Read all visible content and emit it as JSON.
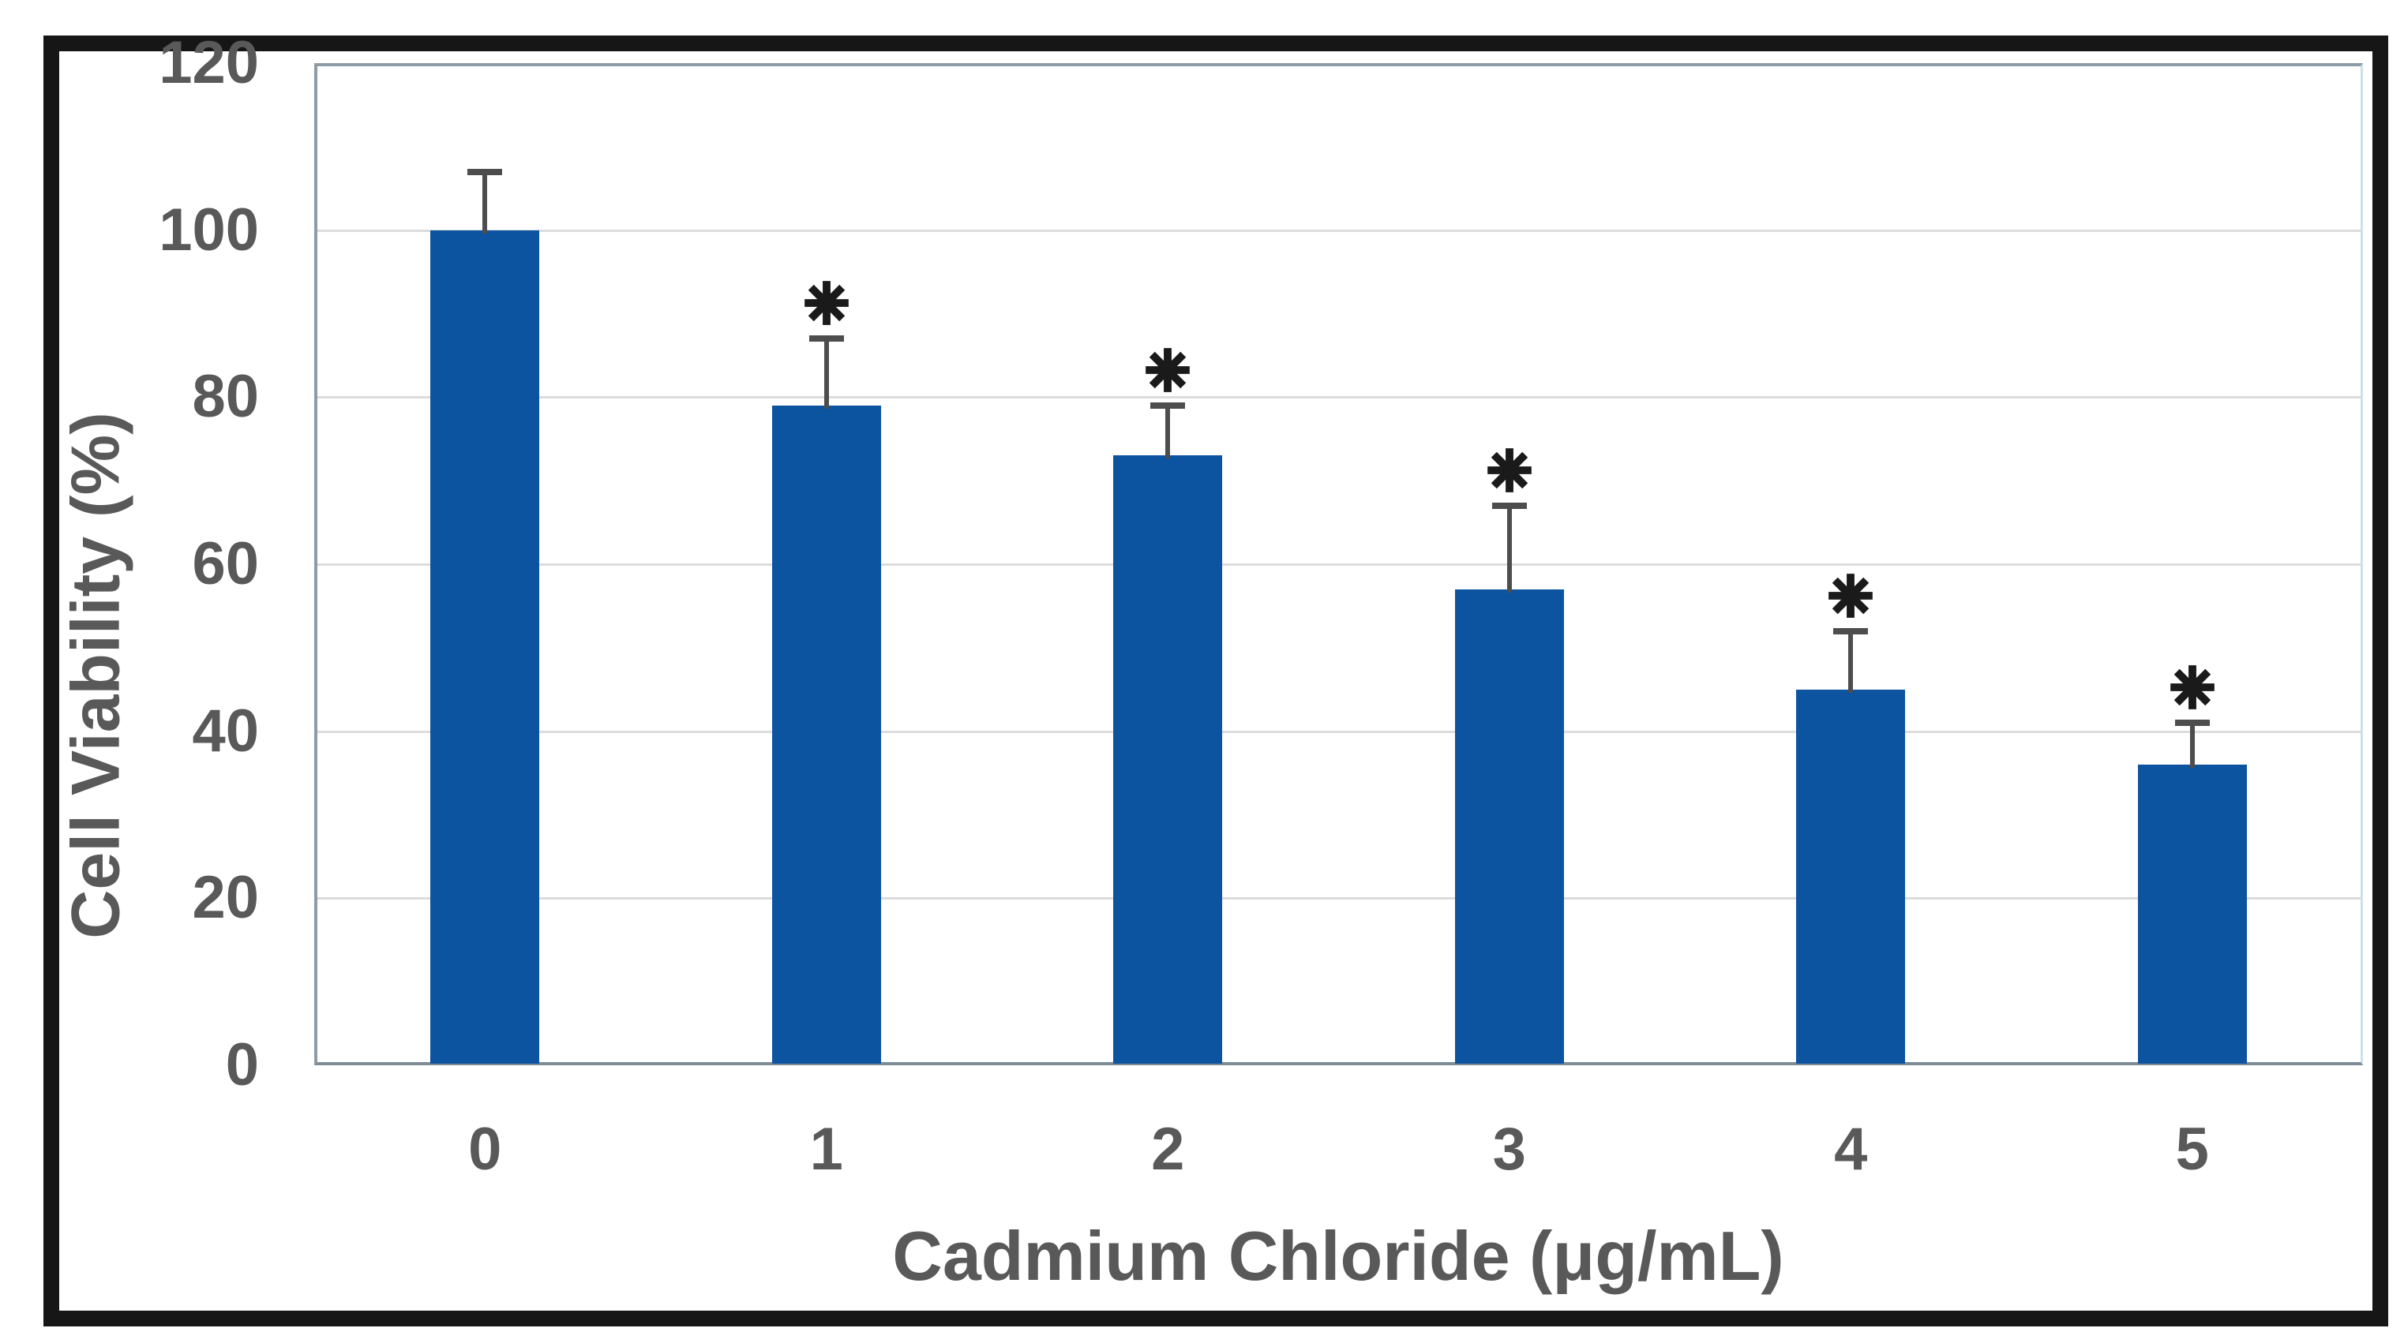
{
  "chart_data": {
    "type": "bar",
    "title": "",
    "categories": [
      "0",
      "1",
      "2",
      "3",
      "4",
      "5"
    ],
    "values": [
      100,
      79,
      73,
      57,
      45,
      36
    ],
    "error_up": [
      7,
      8,
      6,
      10,
      7,
      5
    ],
    "significant": [
      false,
      true,
      true,
      true,
      true,
      true
    ],
    "significance_marker": "*",
    "xlabel": "Cadmium Chloride (μg/mL)",
    "ylabel": "Cell Viability (%)",
    "ylim": [
      0,
      120
    ],
    "yticks": [
      0,
      20,
      40,
      60,
      80,
      100,
      120
    ],
    "grid": "horizontal-only",
    "legend": "none",
    "series_count": 1
  },
  "colors": {
    "bar": "#0d54a0",
    "error_bar": "#4d4d4d",
    "asterisk": "#1a1a1a",
    "axis_text": "#595959",
    "gridline": "#dcdcdc",
    "plot_border": "#8d9ba6",
    "plot_border_right": "#cfdfe9",
    "frame": "#161616",
    "background": "#ffffff"
  }
}
